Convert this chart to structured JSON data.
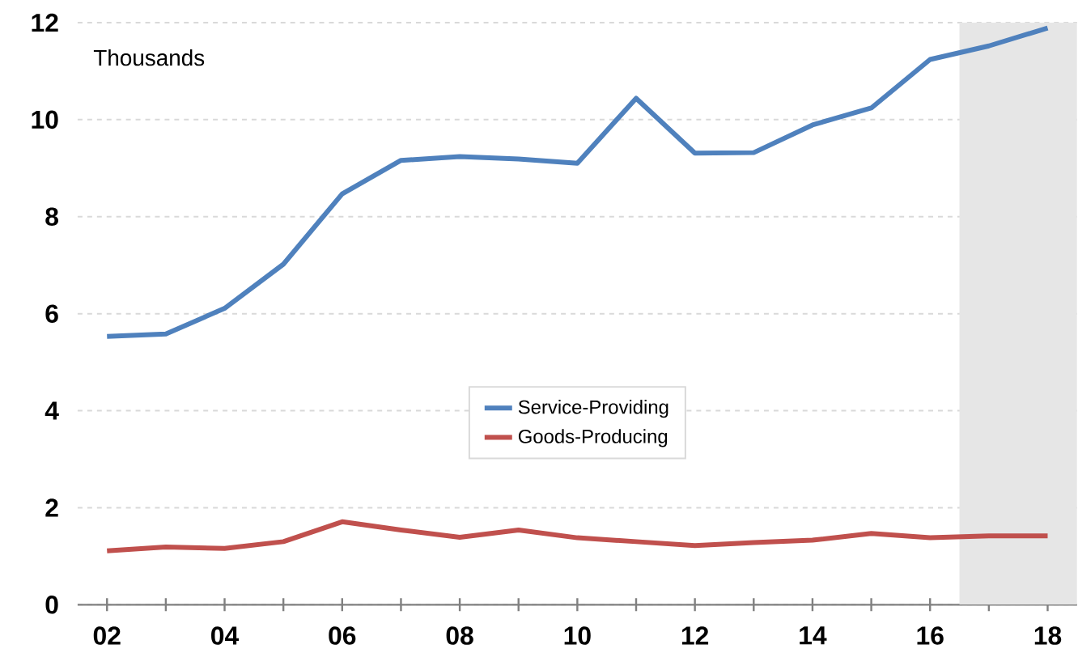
{
  "chart_data": {
    "type": "line",
    "x": [
      2002,
      2003,
      2004,
      2005,
      2006,
      2007,
      2008,
      2009,
      2010,
      2011,
      2012,
      2013,
      2014,
      2015,
      2016,
      2017,
      2018
    ],
    "series": [
      {
        "name": "Service-Providing",
        "color": "#4f81bd",
        "values": [
          5.53,
          5.58,
          6.11,
          7.02,
          8.47,
          9.16,
          9.24,
          9.19,
          9.1,
          10.44,
          9.31,
          9.32,
          9.89,
          10.24,
          11.24,
          11.52,
          11.89
        ]
      },
      {
        "name": "Goods-Producing",
        "color": "#c0504d",
        "values": [
          1.11,
          1.19,
          1.16,
          1.3,
          1.71,
          1.54,
          1.39,
          1.54,
          1.38,
          1.3,
          1.22,
          1.28,
          1.33,
          1.47,
          1.38,
          1.42,
          1.42
        ]
      }
    ],
    "xlim": [
      2001.5,
      2018.5
    ],
    "xticks": [
      {
        "value": 2002,
        "label": "02"
      },
      {
        "value": 2003,
        "label": null
      },
      {
        "value": 2004,
        "label": "04"
      },
      {
        "value": 2005,
        "label": null
      },
      {
        "value": 2006,
        "label": "06"
      },
      {
        "value": 2007,
        "label": null
      },
      {
        "value": 2008,
        "label": "08"
      },
      {
        "value": 2009,
        "label": null
      },
      {
        "value": 2010,
        "label": "10"
      },
      {
        "value": 2011,
        "label": null
      },
      {
        "value": 2012,
        "label": "12"
      },
      {
        "value": 2013,
        "label": null
      },
      {
        "value": 2014,
        "label": "14"
      },
      {
        "value": 2015,
        "label": null
      },
      {
        "value": 2016,
        "label": "16"
      },
      {
        "value": 2017,
        "label": null
      },
      {
        "value": 2018,
        "label": "18"
      }
    ],
    "ylim": [
      0,
      12
    ],
    "yticks": [
      0,
      2,
      4,
      6,
      8,
      10,
      12
    ],
    "bands": [
      {
        "axis": "x",
        "from": 2016.5,
        "to": 2018.5,
        "color": "#e6e6e6"
      }
    ],
    "annotations": [
      "Thousands"
    ],
    "grid": "y",
    "legend": "bottom",
    "marker": "none",
    "line_style": "solid"
  }
}
